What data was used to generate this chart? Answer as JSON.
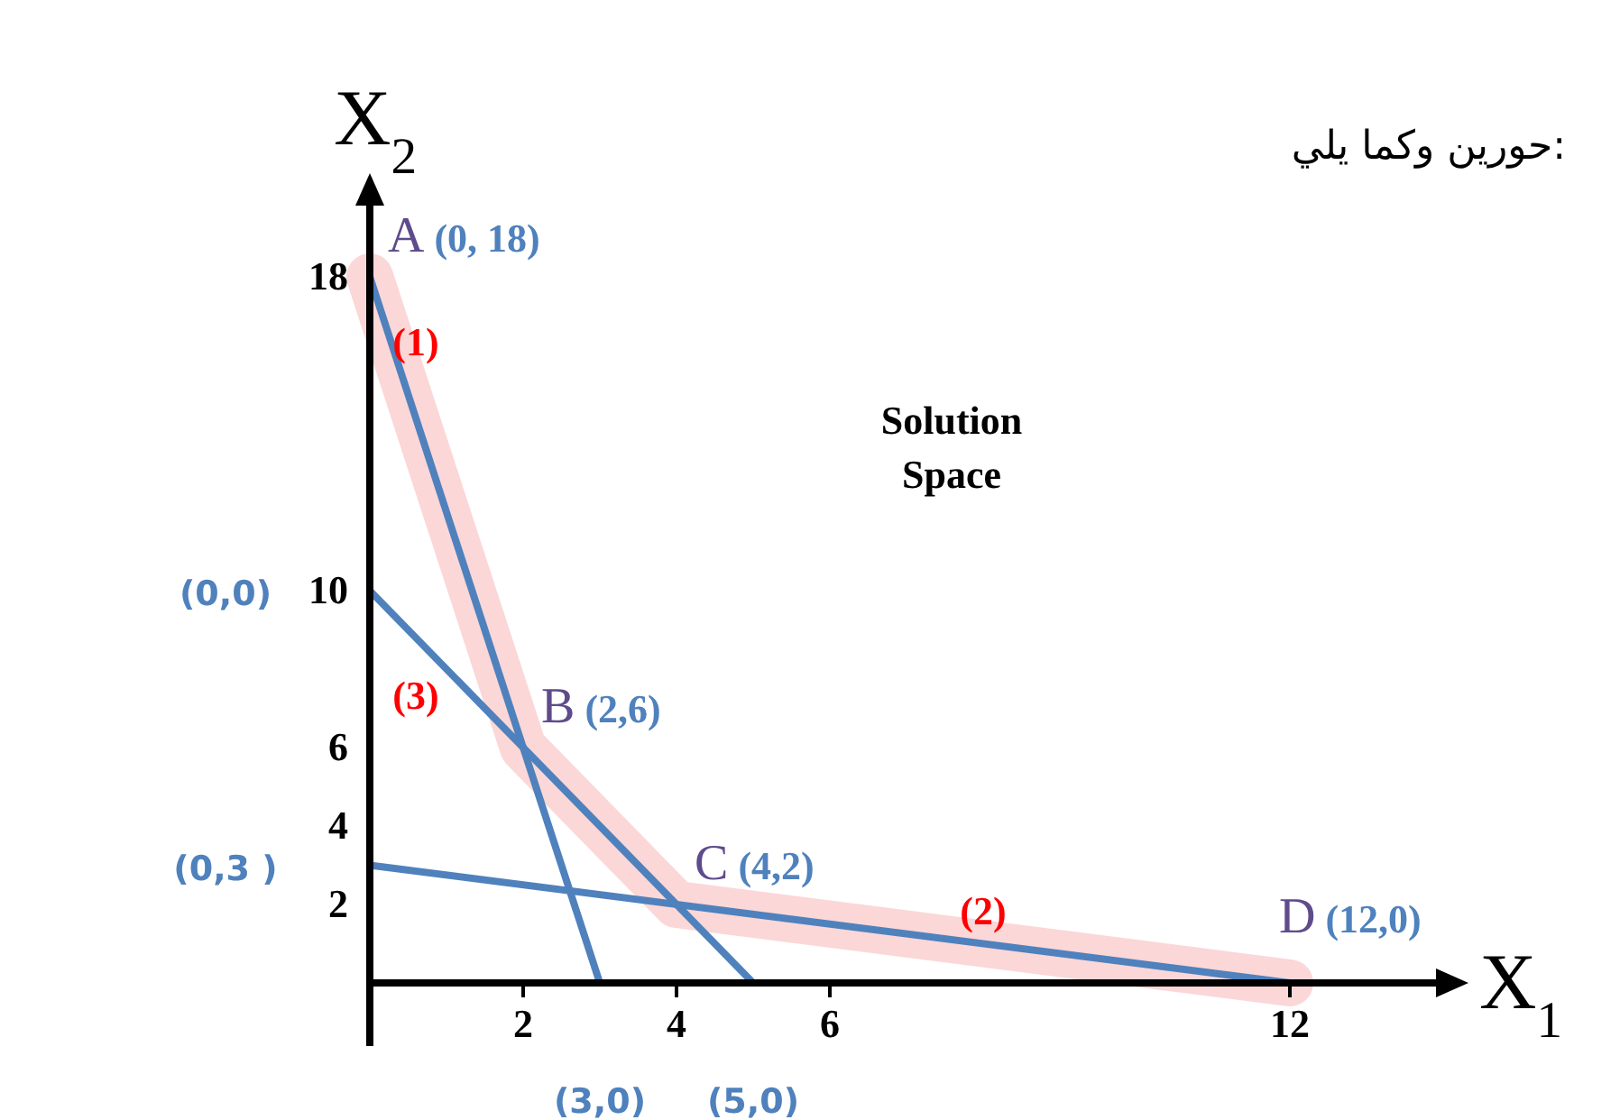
{
  "chart_data": {
    "type": "line",
    "xlabel": "X$_{1}$",
    "ylabel": "X$_{2}$",
    "xlim": [
      0,
      14
    ],
    "ylim": [
      0,
      20
    ],
    "xticks": [
      2,
      4,
      6,
      12
    ],
    "yticks": [
      2,
      4,
      6,
      10,
      18
    ],
    "grid": false,
    "series": [
      {
        "color": "#f9c9c9",
        "x": [
          0,
          2,
          4,
          12
        ],
        "values": [
          18,
          6,
          2,
          0
        ]
      },
      {
        "color": "#4f81bd",
        "x": [
          0,
          3
        ],
        "values": [
          18,
          0
        ]
      },
      {
        "color": "#4f81bd",
        "x": [
          0,
          5
        ],
        "values": [
          10,
          0
        ]
      },
      {
        "color": "#4f81bd",
        "x": [
          0,
          12
        ],
        "values": [
          3,
          0
        ]
      }
    ],
    "annotations": [
      {
        "text": "A (0, 18)",
        "x": 0,
        "y": 18
      },
      {
        "text": "B (2,6)",
        "x": 2,
        "y": 6
      },
      {
        "text": "C (4,2)",
        "x": 4,
        "y": 2
      },
      {
        "text": "D (12,0)",
        "x": 12,
        "y": 0
      },
      "(1)",
      "(3)",
      "(2)",
      {
        "text": "(0,0)",
        "x": 0,
        "y": 10
      },
      {
        "text": "(0,3 )",
        "x": 0,
        "y": 3
      },
      {
        "text": "(3,0)",
        "x": 3,
        "y": 0
      },
      {
        "text": "(5,0)",
        "x": 5,
        "y": 0
      },
      "Solution Space",
      "حورين وكما يلي:"
    ]
  }
}
